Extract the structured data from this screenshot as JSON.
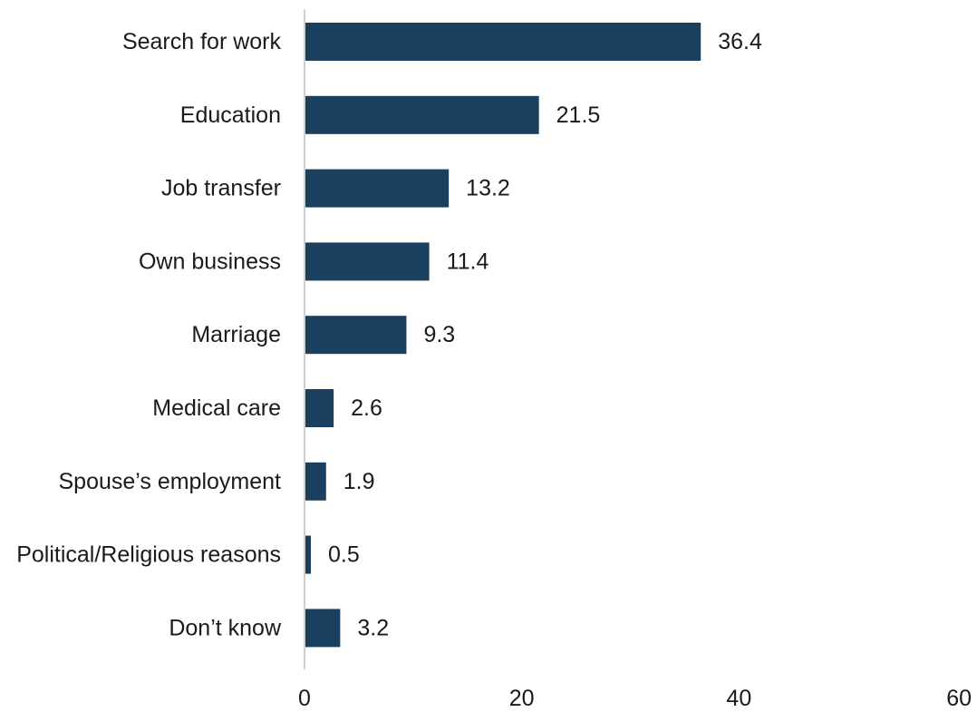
{
  "chart_data": {
    "type": "bar",
    "orientation": "horizontal",
    "categories": [
      "Search for work",
      "Education",
      "Job transfer",
      "Own business",
      "Marriage",
      "Medical care",
      "Spouse’s employment",
      "Political/Religious reasons",
      "Don’t know"
    ],
    "values": [
      36.4,
      21.5,
      13.2,
      11.4,
      9.3,
      2.6,
      1.9,
      0.5,
      3.2
    ],
    "data_labels": [
      "36.4",
      "21.5",
      "13.2",
      "11.4",
      "9.3",
      "2.6",
      "1.9",
      "0.5",
      "3.2"
    ],
    "x_ticks": [
      "0",
      "20",
      "40",
      "60"
    ],
    "xlim": [
      0,
      60
    ],
    "title": "",
    "xlabel": "",
    "ylabel": "",
    "grid": false,
    "legend": "none",
    "bar_color": "#1b3f5f",
    "axis_color": "#bfbfbf"
  }
}
